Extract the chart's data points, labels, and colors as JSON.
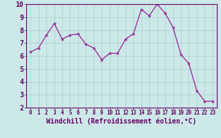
{
  "x": [
    0,
    1,
    2,
    3,
    4,
    5,
    6,
    7,
    8,
    9,
    10,
    11,
    12,
    13,
    14,
    15,
    16,
    17,
    18,
    19,
    20,
    21,
    22,
    23
  ],
  "y": [
    6.3,
    6.6,
    7.6,
    8.5,
    7.3,
    7.6,
    7.7,
    6.9,
    6.6,
    5.7,
    6.2,
    6.2,
    7.3,
    7.7,
    9.6,
    9.1,
    10.0,
    9.3,
    8.2,
    6.1,
    5.4,
    3.3,
    2.5,
    2.5
  ],
  "line_color": "#993399",
  "marker": "*",
  "marker_size": 3,
  "xlabel": "Windchill (Refroidissement éolien,°C)",
  "xlabel_fontsize": 7,
  "ylim": [
    2,
    10
  ],
  "xlim": [
    -0.5,
    23.5
  ],
  "yticks": [
    2,
    3,
    4,
    5,
    6,
    7,
    8,
    9,
    10
  ],
  "xtick_labels": [
    "0",
    "1",
    "2",
    "3",
    "4",
    "5",
    "6",
    "7",
    "8",
    "9",
    "10",
    "11",
    "12",
    "13",
    "14",
    "15",
    "16",
    "17",
    "18",
    "19",
    "20",
    "21",
    "22",
    "23"
  ],
  "background_color": "#cce8e8",
  "grid_color": "#aacccc",
  "ytick_fontsize": 7,
  "xtick_fontsize": 5.5,
  "line_width": 1.0,
  "xlabel_color": "#660066",
  "tick_color": "#660066",
  "spine_color": "#660066"
}
